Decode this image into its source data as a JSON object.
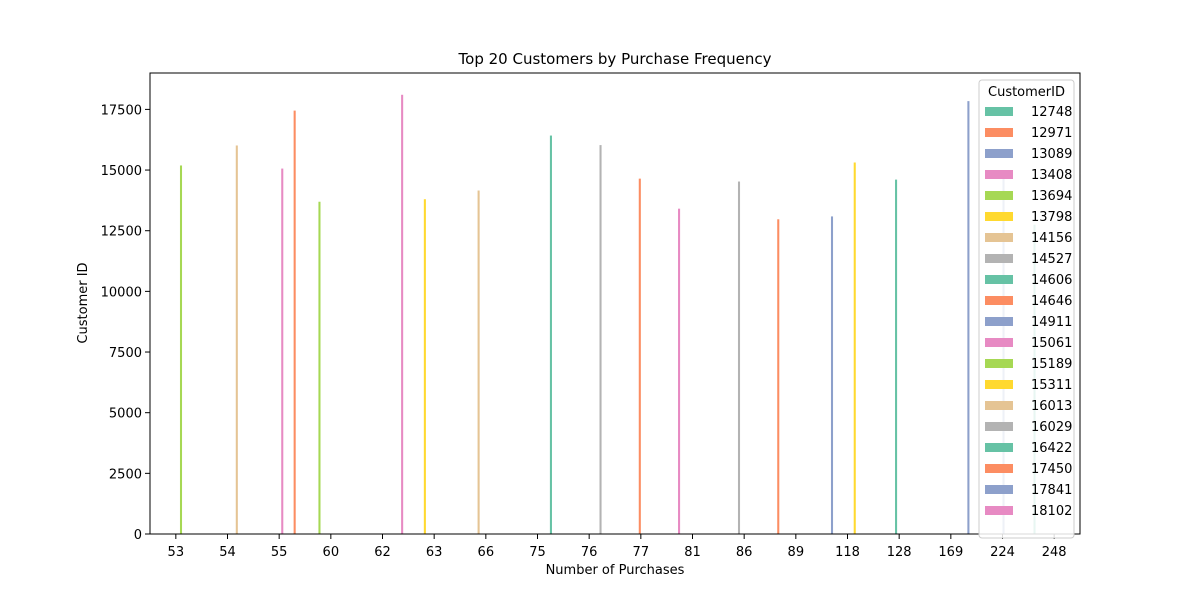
{
  "chart_data": {
    "type": "bar",
    "title": "Top 20 Customers by Purchase Frequency",
    "xlabel": "Number of Purchases",
    "ylabel": "Customer ID",
    "ylim": [
      0,
      19000
    ],
    "yticks": [
      0,
      2500,
      5000,
      7500,
      10000,
      12500,
      15000,
      17500
    ],
    "categories": [
      "53",
      "54",
      "55",
      "60",
      "62",
      "63",
      "66",
      "75",
      "76",
      "77",
      "81",
      "86",
      "89",
      "118",
      "128",
      "169",
      "224",
      "248"
    ],
    "grid": false,
    "legend": {
      "title": "CustomerID",
      "placement": "top-right"
    },
    "series": [
      {
        "name": "12748",
        "color": "#66c2a5",
        "category": "248",
        "value": 12748
      },
      {
        "name": "12971",
        "color": "#fc8d62",
        "category": "89",
        "value": 12971
      },
      {
        "name": "13089",
        "color": "#8da0cb",
        "category": "118",
        "value": 13089
      },
      {
        "name": "13408",
        "color": "#e78ac3",
        "category": "81",
        "value": 13408
      },
      {
        "name": "13694",
        "color": "#a6d854",
        "category": "60",
        "value": 13694
      },
      {
        "name": "13798",
        "color": "#ffd92f",
        "category": "63",
        "value": 13798
      },
      {
        "name": "14156",
        "color": "#e5c494",
        "category": "66",
        "value": 14156
      },
      {
        "name": "14527",
        "color": "#b3b3b3",
        "category": "86",
        "value": 14527
      },
      {
        "name": "14606",
        "color": "#66c2a5",
        "category": "128",
        "value": 14606
      },
      {
        "name": "14646",
        "color": "#fc8d62",
        "category": "77",
        "value": 14646
      },
      {
        "name": "14911",
        "color": "#8da0cb",
        "category": "224",
        "value": 14911
      },
      {
        "name": "15061",
        "color": "#e78ac3",
        "category": "55",
        "value": 15061
      },
      {
        "name": "15189",
        "color": "#a6d854",
        "category": "53",
        "value": 15189
      },
      {
        "name": "15311",
        "color": "#ffd92f",
        "category": "118",
        "value": 15311
      },
      {
        "name": "16013",
        "color": "#e5c494",
        "category": "54",
        "value": 16013
      },
      {
        "name": "16029",
        "color": "#b3b3b3",
        "category": "76",
        "value": 16029
      },
      {
        "name": "16422",
        "color": "#66c2a5",
        "category": "75",
        "value": 16422
      },
      {
        "name": "17450",
        "color": "#fc8d62",
        "category": "55",
        "value": 17450
      },
      {
        "name": "17841",
        "color": "#8da0cb",
        "category": "169",
        "value": 17841
      },
      {
        "name": "18102",
        "color": "#e78ac3",
        "category": "62",
        "value": 18102
      }
    ]
  }
}
